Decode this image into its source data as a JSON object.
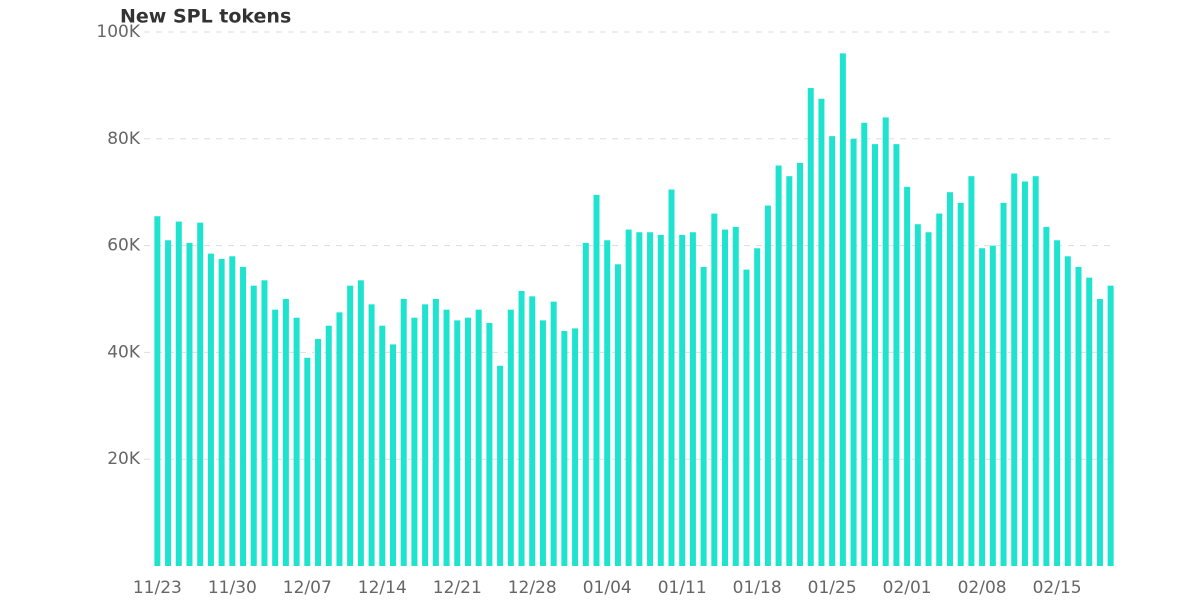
{
  "chart_data": {
    "type": "bar",
    "title": "New SPL tokens",
    "color": "#1ee3cf",
    "categories": [
      "11/23",
      null,
      null,
      null,
      null,
      null,
      null,
      "11/30",
      null,
      null,
      null,
      null,
      null,
      null,
      "12/07",
      null,
      null,
      null,
      null,
      null,
      null,
      "12/14",
      null,
      null,
      null,
      null,
      null,
      null,
      "12/21",
      null,
      null,
      null,
      null,
      null,
      null,
      "12/28",
      null,
      null,
      null,
      null,
      null,
      null,
      "01/04",
      null,
      null,
      null,
      null,
      null,
      null,
      "01/11",
      null,
      null,
      null,
      null,
      null,
      null,
      "01/18",
      null,
      null,
      null,
      null,
      null,
      null,
      "01/25",
      null,
      null,
      null,
      null,
      null,
      null,
      "02/01",
      null,
      null,
      null,
      null,
      null,
      null,
      "02/08",
      null,
      null,
      null,
      null,
      null,
      null,
      "02/15",
      null,
      null,
      null,
      null,
      null
    ],
    "values": [
      65500,
      61000,
      64500,
      60500,
      64300,
      58500,
      57500,
      58000,
      56000,
      52500,
      53500,
      48000,
      50000,
      46500,
      39000,
      42500,
      45000,
      47500,
      52500,
      53500,
      49000,
      45000,
      41500,
      50000,
      46500,
      49000,
      50000,
      48000,
      46000,
      46500,
      48000,
      45500,
      37500,
      48000,
      51500,
      50500,
      46000,
      49500,
      44000,
      44500,
      60500,
      69500,
      61000,
      56500,
      63000,
      62500,
      62500,
      62000,
      70500,
      62000,
      62500,
      56000,
      66000,
      63000,
      63500,
      55500,
      59500,
      67500,
      75000,
      73000,
      75500,
      89500,
      87500,
      80500,
      96000,
      80000,
      83000,
      79000,
      84000,
      79000,
      71000,
      64000,
      62500,
      66000,
      70000,
      68000,
      73000,
      59500,
      60000,
      68000,
      73500,
      72000,
      73000,
      63500,
      61000,
      58000,
      56000,
      54000,
      50000,
      52500
    ],
    "ylim": [
      0,
      100000
    ],
    "yticks": [
      {
        "value": 20000,
        "label": "20K"
      },
      {
        "value": 40000,
        "label": "40K"
      },
      {
        "value": 60000,
        "label": "60K"
      },
      {
        "value": 80000,
        "label": "80K"
      },
      {
        "value": 100000,
        "label": "100K"
      }
    ],
    "grid": true
  }
}
